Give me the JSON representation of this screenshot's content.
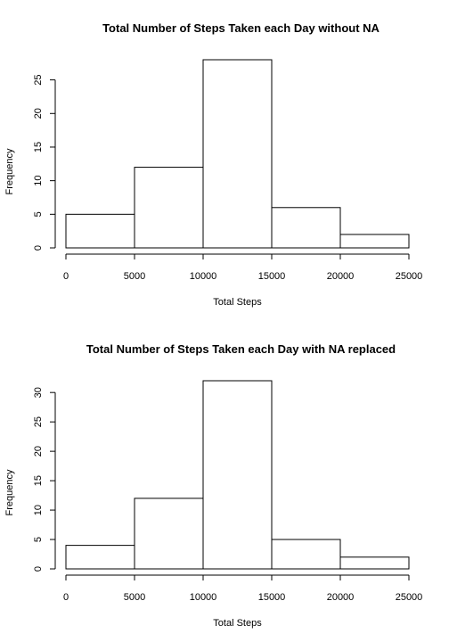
{
  "chart_data": [
    {
      "type": "bar",
      "title": "Total Number of Steps Taken each Day without NA",
      "xlabel": "Total Steps",
      "ylabel": "Frequency",
      "bins": [
        [
          0,
          5000
        ],
        [
          5000,
          10000
        ],
        [
          10000,
          15000
        ],
        [
          15000,
          20000
        ],
        [
          20000,
          25000
        ]
      ],
      "values": [
        5,
        12,
        28,
        6,
        2
      ],
      "xlim": [
        0,
        25000
      ],
      "xticks": [
        "0",
        "5000",
        "10000",
        "15000",
        "20000",
        "25000"
      ],
      "yticks": [
        "0",
        "5",
        "10",
        "15",
        "20",
        "25"
      ],
      "ylim": [
        0,
        28
      ],
      "grid": false,
      "bar_fill": "#ffffff",
      "bar_stroke": "#000000"
    },
    {
      "type": "bar",
      "title": "Total Number of Steps Taken each Day with NA replaced",
      "xlabel": "Total Steps",
      "ylabel": "Frequency",
      "bins": [
        [
          0,
          5000
        ],
        [
          5000,
          10000
        ],
        [
          10000,
          15000
        ],
        [
          15000,
          20000
        ],
        [
          20000,
          25000
        ]
      ],
      "values": [
        4,
        12,
        32,
        5,
        2
      ],
      "xlim": [
        0,
        25000
      ],
      "xticks": [
        "0",
        "5000",
        "10000",
        "15000",
        "20000",
        "25000"
      ],
      "yticks": [
        "0",
        "5",
        "10",
        "15",
        "20",
        "25",
        "30"
      ],
      "ylim": [
        0,
        32
      ],
      "grid": false,
      "bar_fill": "#ffffff",
      "bar_stroke": "#000000"
    }
  ]
}
